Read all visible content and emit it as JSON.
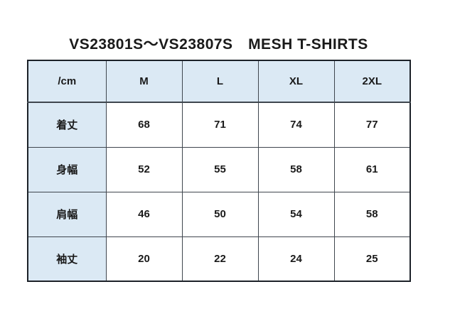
{
  "title": "VS23801S～VS23807S　MESH T-SHIRTS",
  "colors": {
    "header_bg": "#dbe9f4",
    "cell_bg": "#ffffff",
    "border_inner": "#3f464e",
    "border_outer": "#1c2128",
    "text": "#1a1a1a",
    "page_bg": "#ffffff"
  },
  "table": {
    "header": [
      "/cm",
      "M",
      "L",
      "XL",
      "2XL"
    ],
    "rows": [
      {
        "label": "着丈",
        "values": [
          "68",
          "71",
          "74",
          "77"
        ]
      },
      {
        "label": "身幅",
        "values": [
          "52",
          "55",
          "58",
          "61"
        ]
      },
      {
        "label": "肩幅",
        "values": [
          "46",
          "50",
          "54",
          "58"
        ]
      },
      {
        "label": "袖丈",
        "values": [
          "20",
          "22",
          "24",
          "25"
        ]
      }
    ]
  },
  "chart_data": {
    "type": "table",
    "title": "VS23801S～VS23807S　MESH T-SHIRTS",
    "unit": "cm",
    "categories": [
      "M",
      "L",
      "XL",
      "2XL"
    ],
    "series": [
      {
        "name": "着丈",
        "values": [
          68,
          71,
          74,
          77
        ]
      },
      {
        "name": "身幅",
        "values": [
          52,
          55,
          58,
          61
        ]
      },
      {
        "name": "肩幅",
        "values": [
          46,
          50,
          54,
          58
        ]
      },
      {
        "name": "袖丈",
        "values": [
          20,
          22,
          24,
          25
        ]
      }
    ]
  }
}
